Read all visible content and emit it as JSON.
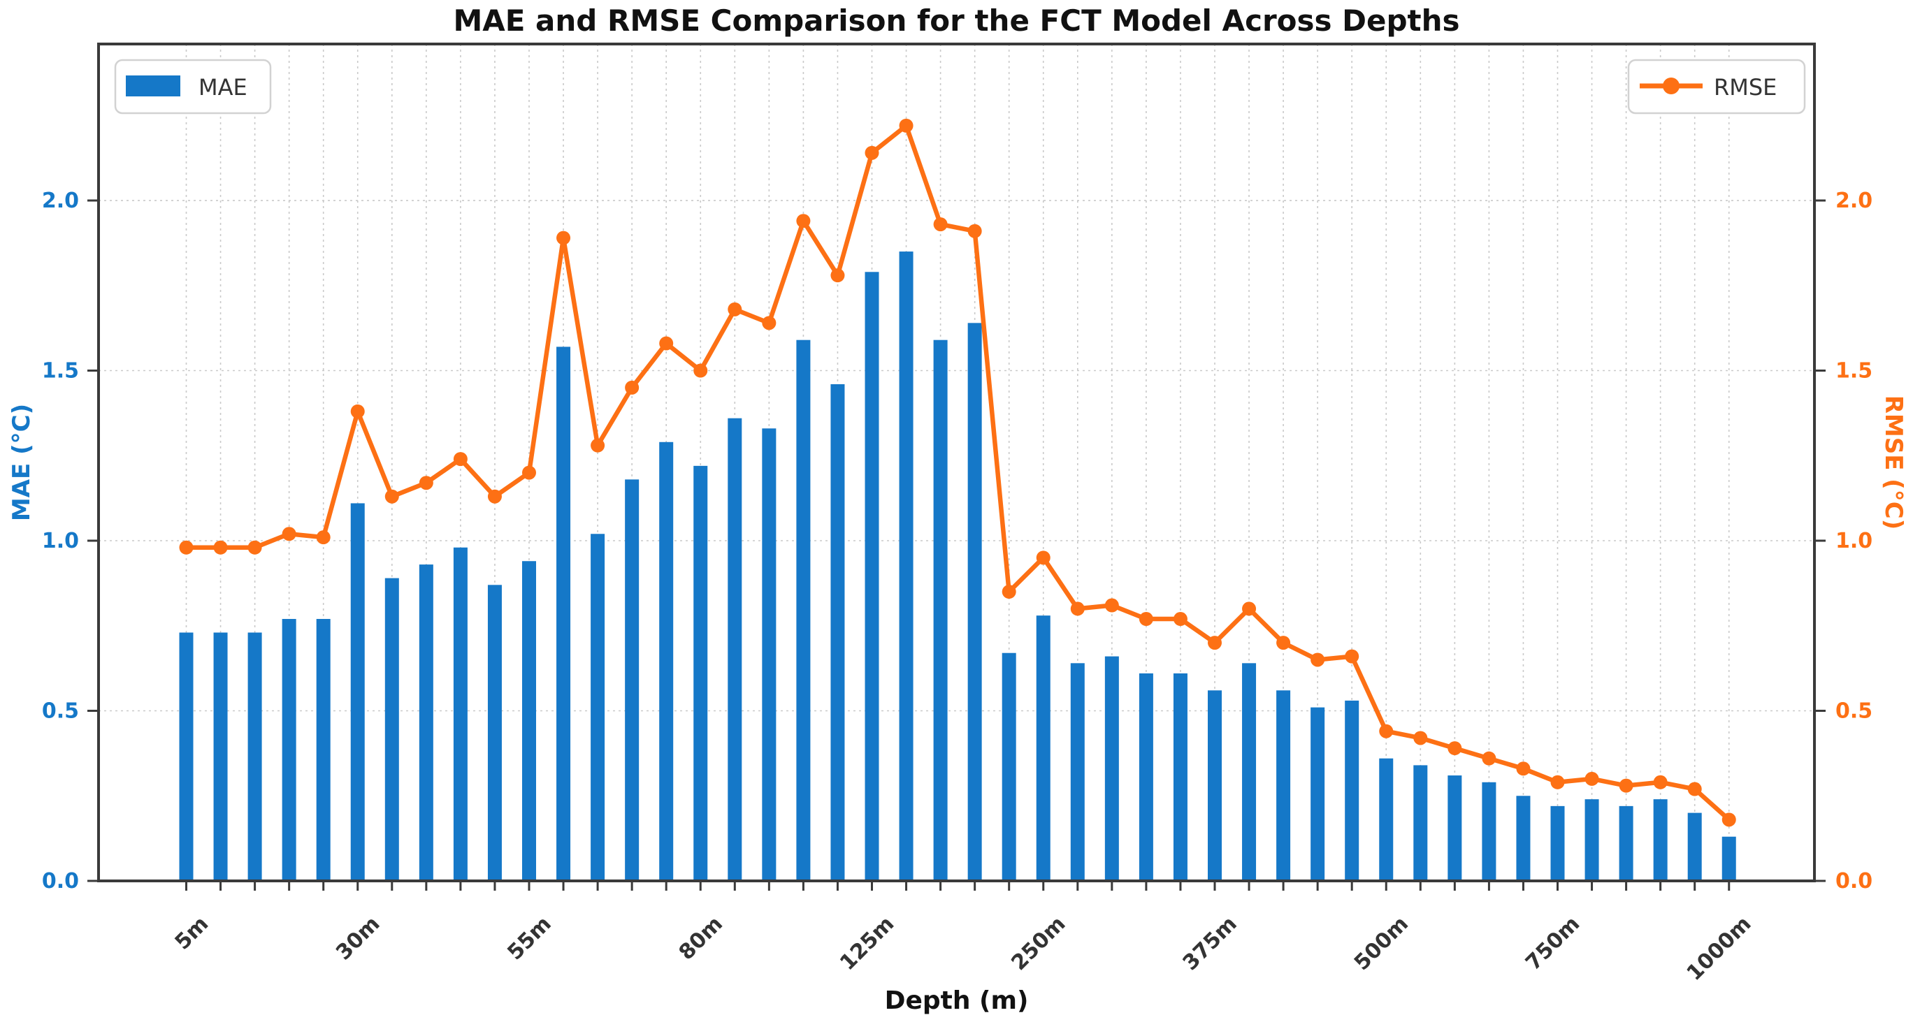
{
  "title": "MAE and RMSE Comparison for the FCT Model Across Depths",
  "axes": {
    "x_label": "Depth (m)",
    "y_left_label": "MAE (°C)",
    "y_right_label": "RMSE (°C)",
    "y_tick_labels": [
      "0.0",
      "0.5",
      "1.0",
      "1.5",
      "2.0"
    ],
    "y_tick_values": [
      0.0,
      0.5,
      1.0,
      1.5,
      2.0
    ]
  },
  "legend": {
    "mae_label": "MAE",
    "rmse_label": "RMSE"
  },
  "colors": {
    "bar_blue": "#1578c8",
    "line_orange": "#fd7014",
    "grid": "#c9c9c9",
    "spine": "#3a3a3a",
    "tick_text_x": "#333333",
    "title_text": "#111111",
    "legend_text": "#333333",
    "legend_border": "#d2d2d2"
  },
  "chart_data": {
    "type": "bar",
    "title": "MAE and RMSE Comparison for the FCT Model Across Depths",
    "xlabel": "Depth (m)",
    "ylabel_left": "MAE (°C)",
    "ylabel_right": "RMSE (°C)",
    "ylim": [
      0,
      2.46
    ],
    "grid": true,
    "n_bars": 46,
    "x_major_tick_indices": [
      0,
      5,
      10,
      15,
      20,
      25,
      30,
      35,
      40,
      45
    ],
    "x_major_tick_labels": [
      "5m",
      "30m",
      "55m",
      "80m",
      "125m",
      "250m",
      "375m",
      "500m",
      "750m",
      "1000m"
    ],
    "legend_position": [
      "upper left",
      "upper right"
    ],
    "series": [
      {
        "name": "MAE",
        "type": "bar",
        "axis": "left",
        "values": [
          0.73,
          0.73,
          0.73,
          0.77,
          0.77,
          1.11,
          0.89,
          0.93,
          0.98,
          0.87,
          0.94,
          1.57,
          1.02,
          1.18,
          1.29,
          1.22,
          1.36,
          1.33,
          1.59,
          1.46,
          1.79,
          1.85,
          1.59,
          1.64,
          0.67,
          0.78,
          0.64,
          0.66,
          0.61,
          0.61,
          0.56,
          0.64,
          0.56,
          0.51,
          0.53,
          0.36,
          0.34,
          0.31,
          0.29,
          0.25,
          0.22,
          0.24,
          0.22,
          0.24,
          0.2,
          0.13
        ]
      },
      {
        "name": "RMSE",
        "type": "line",
        "axis": "right",
        "values": [
          0.98,
          0.98,
          0.98,
          1.02,
          1.01,
          1.38,
          1.13,
          1.17,
          1.24,
          1.13,
          1.2,
          1.89,
          1.28,
          1.45,
          1.58,
          1.5,
          1.68,
          1.64,
          1.94,
          1.78,
          2.14,
          2.22,
          1.93,
          1.91,
          0.85,
          0.95,
          0.8,
          0.81,
          0.77,
          0.77,
          0.7,
          0.8,
          0.7,
          0.65,
          0.66,
          0.44,
          0.42,
          0.39,
          0.36,
          0.33,
          0.29,
          0.3,
          0.28,
          0.29,
          0.27,
          0.18
        ]
      }
    ]
  }
}
